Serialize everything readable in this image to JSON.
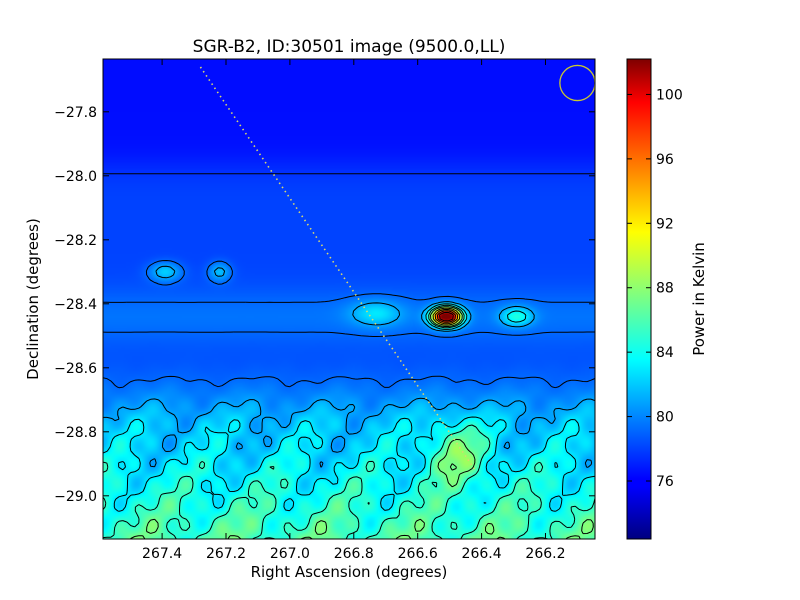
{
  "chart_data": {
    "type": "heatmap",
    "title": "SGR-B2, ID:30501 image (9500.0,LL)",
    "xlabel": "Right Ascension (degrees)",
    "ylabel": "Declination (degrees)",
    "colorbar_label": "Power in Kelvin",
    "xlim": [
      267.585,
      266.045
    ],
    "ylim": [
      -29.135,
      -27.635
    ],
    "x_ticks": [
      {
        "value": 267.4,
        "label": "267.4"
      },
      {
        "value": 267.2,
        "label": "267.2"
      },
      {
        "value": 267.0,
        "label": "267.0"
      },
      {
        "value": 266.8,
        "label": "266.8"
      },
      {
        "value": 266.6,
        "label": "266.6"
      },
      {
        "value": 266.4,
        "label": "266.4"
      },
      {
        "value": 266.2,
        "label": "266.2"
      }
    ],
    "y_ticks": [
      {
        "value": -27.8,
        "label": "−27.8"
      },
      {
        "value": -28.0,
        "label": "−28.0"
      },
      {
        "value": -28.2,
        "label": "−28.2"
      },
      {
        "value": -28.4,
        "label": "−28.4"
      },
      {
        "value": -28.6,
        "label": "−28.6"
      },
      {
        "value": -28.8,
        "label": "−28.8"
      },
      {
        "value": -29.0,
        "label": "−29.0"
      }
    ],
    "colorbar": {
      "range": [
        72.4,
        102.2
      ],
      "ticks": [
        {
          "value": 76,
          "label": "76"
        },
        {
          "value": 80,
          "label": "80"
        },
        {
          "value": 84,
          "label": "84"
        },
        {
          "value": 88,
          "label": "88"
        },
        {
          "value": 92,
          "label": "92"
        },
        {
          "value": 96,
          "label": "96"
        },
        {
          "value": 100,
          "label": "100"
        }
      ],
      "colormap": "jet"
    },
    "background_level": 76.5,
    "sources": [
      {
        "ra": 266.51,
        "dec": -28.44,
        "peak": 102.0,
        "sra": 0.045,
        "sdec": 0.028
      },
      {
        "ra": 266.29,
        "dec": -28.44,
        "peak": 81.5,
        "sra": 0.05,
        "sdec": 0.03
      },
      {
        "ra": 266.73,
        "dec": -28.43,
        "peak": 80.0,
        "sra": 0.08,
        "sdec": 0.04
      },
      {
        "ra": 267.39,
        "dec": -28.3,
        "peak": 80.5,
        "sra": 0.05,
        "sdec": 0.03
      },
      {
        "ra": 267.22,
        "dec": -28.3,
        "peak": 80.0,
        "sra": 0.035,
        "sdec": 0.03
      }
    ],
    "beam": {
      "ra": 266.1,
      "dec": -27.71,
      "radius_deg": 0.055,
      "color": "#c8c832"
    },
    "track_line": {
      "points": [
        [
          267.28,
          -27.66
        ],
        [
          266.42,
          -28.92
        ]
      ],
      "color": "#d8d870"
    },
    "colors": {
      "background": "#ffffff",
      "contour": "#000000"
    }
  }
}
